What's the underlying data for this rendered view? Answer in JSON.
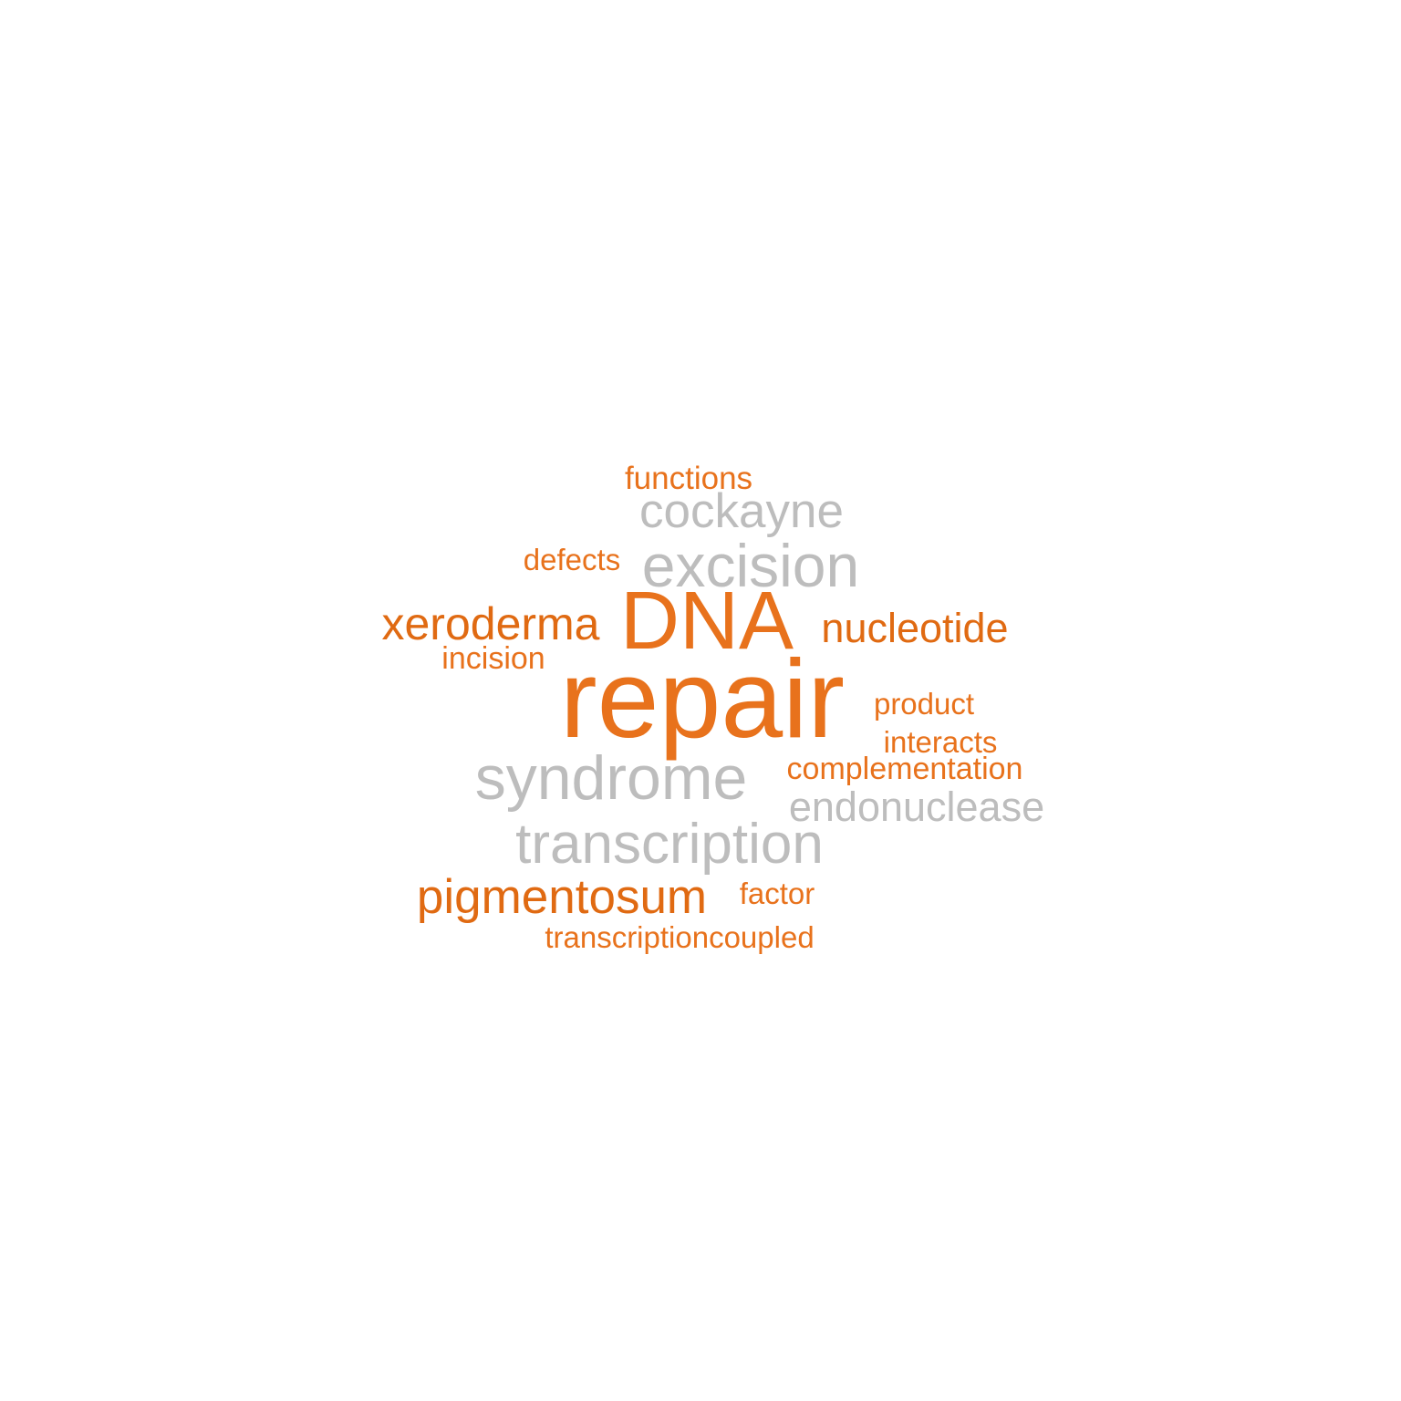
{
  "word_cloud": {
    "colors": {
      "orange": "#E8721C",
      "orange_dark": "#E06A12",
      "grey": "#BDBDBD",
      "background": "#FFFFFF"
    },
    "words": {
      "functions": "functions",
      "cockayne": "cockayne",
      "defects": "defects",
      "excision": "excision",
      "xeroderma": "xeroderma",
      "dna": "DNA",
      "nucleotide": "nucleotide",
      "incision": "incision",
      "repair": "repair",
      "product": "product",
      "interacts": "interacts",
      "complementation": "complementation",
      "syndrome": "syndrome",
      "endonuclease": "endonuclease",
      "transcription": "transcription",
      "pigmentosum": "pigmentosum",
      "factor": "factor",
      "transcriptioncoupled": "transcriptioncoupled"
    }
  }
}
